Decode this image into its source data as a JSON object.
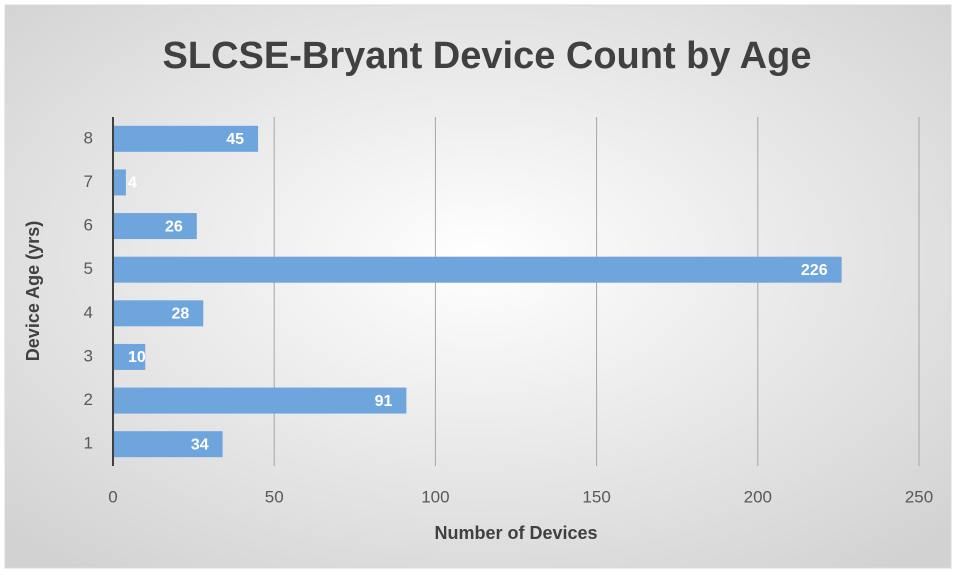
{
  "chart_data": {
    "type": "bar",
    "orientation": "horizontal",
    "title": "SLCSE-Bryant Device Count by Age",
    "x_label": "Number of Devices",
    "y_label": "Device Age (yrs)",
    "categories": [
      "1",
      "2",
      "3",
      "4",
      "5",
      "6",
      "7",
      "8"
    ],
    "values": [
      34,
      91,
      10,
      28,
      226,
      26,
      4,
      45
    ],
    "color": "#6fa5dd",
    "xlim": [
      0,
      250
    ],
    "xticks": [
      0,
      50,
      100,
      150,
      200,
      250
    ],
    "grid": true
  }
}
